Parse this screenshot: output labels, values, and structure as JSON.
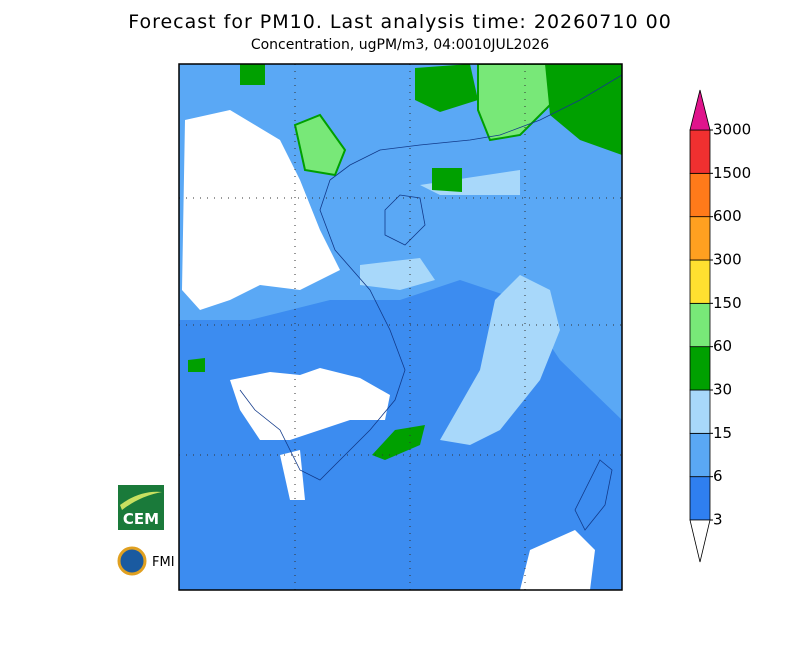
{
  "header": {
    "title": "Forecast for PM10. Last analysis time: 20260710 00",
    "subtitle": "Concentration, ugPM/m3, 04:0010JUL2026"
  },
  "colorbar": {
    "levels": [
      3,
      6,
      15,
      30,
      60,
      150,
      300,
      600,
      1500,
      3000
    ],
    "colors": [
      "#ffffff",
      "#2f7ff0",
      "#5aa8f5",
      "#a8d8fa",
      "#00a000",
      "#78e878",
      "#ffe030",
      "#ffa020",
      "#ff7a1a",
      "#f03030",
      "#e0148c"
    ]
  },
  "logos": {
    "cem": "CEM",
    "fmi": "FMI"
  }
}
